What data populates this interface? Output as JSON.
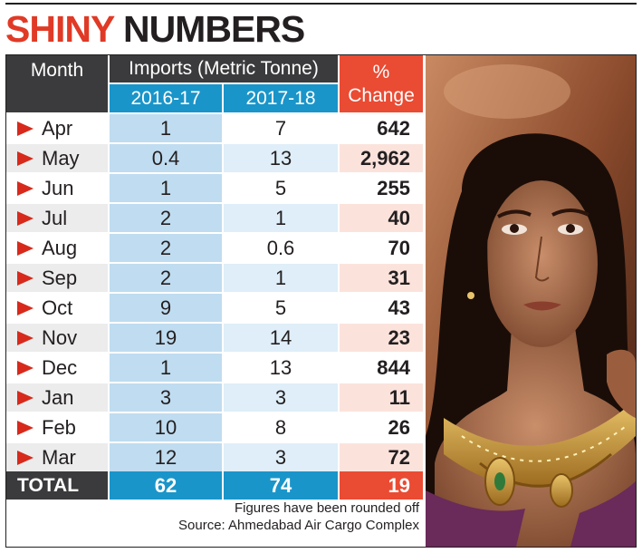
{
  "headline": {
    "part1": "SHINY",
    "part2": "NUMBERS"
  },
  "table": {
    "month_header": "Month",
    "imports_header": "Imports (Metric Tonne)",
    "year1_header": "2016-17",
    "year2_header": "2017-18",
    "pct_header_line1": "%",
    "pct_header_line2": "Change",
    "total_label": "TOTAL",
    "total_2016_17": "62",
    "total_2017_18": "74",
    "total_change": "19"
  },
  "chart_data": {
    "type": "table",
    "title": "SHINY NUMBERS",
    "columns": [
      "Month",
      "2016-17",
      "2017-18",
      "% Change"
    ],
    "rows": [
      {
        "month": "Apr",
        "y2016_17": "1",
        "y2017_18": "7",
        "change": "642"
      },
      {
        "month": "May",
        "y2016_17": "0.4",
        "y2017_18": "13",
        "change": "2,962"
      },
      {
        "month": "Jun",
        "y2016_17": "1",
        "y2017_18": "5",
        "change": "255"
      },
      {
        "month": "Jul",
        "y2016_17": "2",
        "y2017_18": "1",
        "change": "40"
      },
      {
        "month": "Aug",
        "y2016_17": "2",
        "y2017_18": "0.6",
        "change": "70"
      },
      {
        "month": "Sep",
        "y2016_17": "2",
        "y2017_18": "1",
        "change": "31"
      },
      {
        "month": "Oct",
        "y2016_17": "9",
        "y2017_18": "5",
        "change": "43"
      },
      {
        "month": "Nov",
        "y2016_17": "19",
        "y2017_18": "14",
        "change": "23"
      },
      {
        "month": "Dec",
        "y2016_17": "1",
        "y2017_18": "13",
        "change": "844"
      },
      {
        "month": "Jan",
        "y2016_17": "3",
        "y2017_18": "3",
        "change": "11"
      },
      {
        "month": "Feb",
        "y2016_17": "10",
        "y2017_18": "8",
        "change": "26"
      },
      {
        "month": "Mar",
        "y2016_17": "12",
        "y2017_18": "3",
        "change": "72"
      }
    ]
  },
  "notes": {
    "line1": "Figures have been rounded off",
    "line2": "Source: Ahmedabad Air Cargo Complex"
  },
  "colors": {
    "accent_red": "#ea4b33",
    "header_blue": "#1a95c9",
    "header_dark": "#3b3a3c",
    "arrow_red": "#d72a1c",
    "band_blue_strong": "#c0dcf0",
    "band_blue_light": "#dfeef8",
    "band_pink": "#fbe3dc",
    "band_grey": "#ececec"
  },
  "photo": {
    "icon": "woman-wearing-gold-necklace-photo"
  }
}
